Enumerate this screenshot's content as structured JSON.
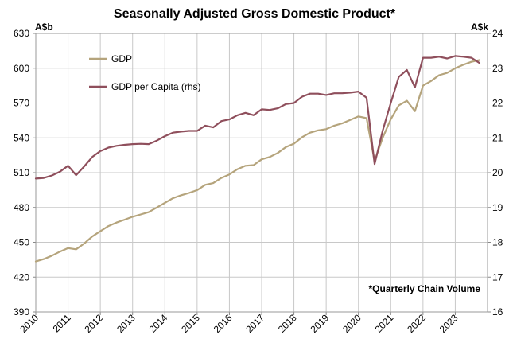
{
  "chart_data": {
    "type": "line",
    "title": "Seasonally Adjusted Gross Domestic Product*",
    "left_unit": "A$b",
    "right_unit": "A$k",
    "note": "*Quarterly Chain Volume",
    "xlim": [
      2010,
      2024
    ],
    "x_ticks": [
      2010,
      2011,
      2012,
      2013,
      2014,
      2015,
      2016,
      2017,
      2018,
      2019,
      2020,
      2021,
      2022,
      2023
    ],
    "ylim_left": [
      390,
      630
    ],
    "y_ticks_left": [
      390,
      420,
      450,
      480,
      510,
      540,
      570,
      600,
      630
    ],
    "ylim_right": [
      16,
      24
    ],
    "y_ticks_right": [
      16,
      17,
      18,
      19,
      20,
      21,
      22,
      23,
      24
    ],
    "grid": true,
    "legend_position": "top-left",
    "series": [
      {
        "name": "GDP",
        "axis": "left",
        "color": "#b5a47c",
        "x": [
          2010.0,
          2010.25,
          2010.5,
          2010.75,
          2011.0,
          2011.25,
          2011.5,
          2011.75,
          2012.0,
          2012.25,
          2012.5,
          2012.75,
          2013.0,
          2013.25,
          2013.5,
          2013.75,
          2014.0,
          2014.25,
          2014.5,
          2014.75,
          2015.0,
          2015.25,
          2015.5,
          2015.75,
          2016.0,
          2016.25,
          2016.5,
          2016.75,
          2017.0,
          2017.25,
          2017.5,
          2017.75,
          2018.0,
          2018.25,
          2018.5,
          2018.75,
          2019.0,
          2019.25,
          2019.5,
          2019.75,
          2020.0,
          2020.25,
          2020.5,
          2020.75,
          2021.0,
          2021.25,
          2021.5,
          2021.75,
          2022.0,
          2022.25,
          2022.5,
          2022.75,
          2023.0,
          2023.25,
          2023.5,
          2023.75
        ],
        "values": [
          433.5,
          435.5,
          438.5,
          442,
          445,
          444,
          449,
          455,
          459.5,
          464,
          467,
          469.5,
          472,
          474,
          476,
          480,
          484,
          488,
          490.5,
          492.5,
          495,
          499.5,
          501,
          505.5,
          508.5,
          513,
          516,
          516.5,
          521.5,
          523.5,
          527,
          532,
          535,
          540.5,
          544.5,
          546.5,
          547.5,
          550.5,
          552.5,
          555.5,
          558.5,
          557,
          520,
          540,
          556,
          568,
          572,
          563,
          585,
          589,
          594,
          596,
          600,
          603,
          605.5,
          607
        ]
      },
      {
        "name": "GDP per Capita (rhs)",
        "axis": "right",
        "color": "#8f4f5c",
        "x": [
          2010.0,
          2010.25,
          2010.5,
          2010.75,
          2011.0,
          2011.25,
          2011.5,
          2011.75,
          2012.0,
          2012.25,
          2012.5,
          2012.75,
          2013.0,
          2013.25,
          2013.5,
          2013.75,
          2014.0,
          2014.25,
          2014.5,
          2014.75,
          2015.0,
          2015.25,
          2015.5,
          2015.75,
          2016.0,
          2016.25,
          2016.5,
          2016.75,
          2017.0,
          2017.25,
          2017.5,
          2017.75,
          2018.0,
          2018.25,
          2018.5,
          2018.75,
          2019.0,
          2019.25,
          2019.5,
          2019.75,
          2020.0,
          2020.25,
          2020.5,
          2020.75,
          2021.0,
          2021.25,
          2021.5,
          2021.75,
          2022.0,
          2022.25,
          2022.5,
          2022.75,
          2023.0,
          2023.25,
          2023.5,
          2023.75
        ],
        "values": [
          19.83,
          19.85,
          19.92,
          20.03,
          20.2,
          19.93,
          20.18,
          20.45,
          20.62,
          20.72,
          20.77,
          20.8,
          20.82,
          20.83,
          20.82,
          20.92,
          21.05,
          21.15,
          21.18,
          21.2,
          21.2,
          21.35,
          21.3,
          21.48,
          21.53,
          21.65,
          21.72,
          21.65,
          21.82,
          21.8,
          21.85,
          21.97,
          22,
          22.18,
          22.27,
          22.27,
          22.23,
          22.28,
          22.28,
          22.3,
          22.33,
          22.15,
          20.25,
          21.2,
          22.0,
          22.75,
          22.95,
          22.45,
          23.3,
          23.3,
          23.33,
          23.28,
          23.35,
          23.33,
          23.3,
          23.15
        ]
      }
    ]
  }
}
